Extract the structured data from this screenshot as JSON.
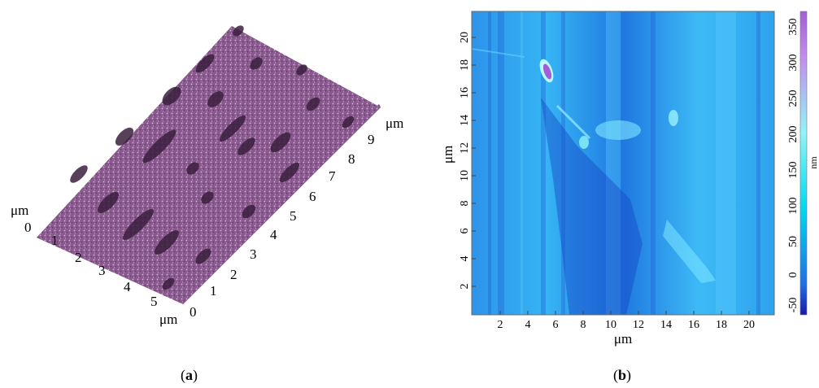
{
  "panel_a": {
    "label": "a",
    "surface_color": "#8a5a8e",
    "dot_color": "#3b1f3e",
    "unit_left": "μm",
    "unit_bottom": "μm",
    "unit_right": "μm",
    "axis_short_ticks": [
      "0",
      "1",
      "2",
      "3",
      "4",
      "5"
    ],
    "axis_long_ticks": [
      "0",
      "1",
      "2",
      "3",
      "4",
      "5",
      "6",
      "7",
      "8",
      "9"
    ]
  },
  "panel_b": {
    "label": "b",
    "xlabel": "μm",
    "ylabel": "μm",
    "colorbar_unit": "nm",
    "x_ticks": [
      "2",
      "4",
      "6",
      "8",
      "10",
      "12",
      "14",
      "16",
      "18",
      "20"
    ],
    "y_ticks": [
      "2",
      "4",
      "6",
      "8",
      "10",
      "12",
      "14",
      "16",
      "18",
      "20"
    ],
    "colorbar_ticks": [
      "-50",
      "0",
      "50",
      "100",
      "150",
      "200",
      "250",
      "300",
      "350"
    ],
    "colorbar_stops": [
      "#1a1aa8",
      "#1e6fe8",
      "#00d8f0",
      "#8ff5f8",
      "#c38cf0",
      "#a45cd8"
    ],
    "map_base_color": "#29a6f0"
  }
}
